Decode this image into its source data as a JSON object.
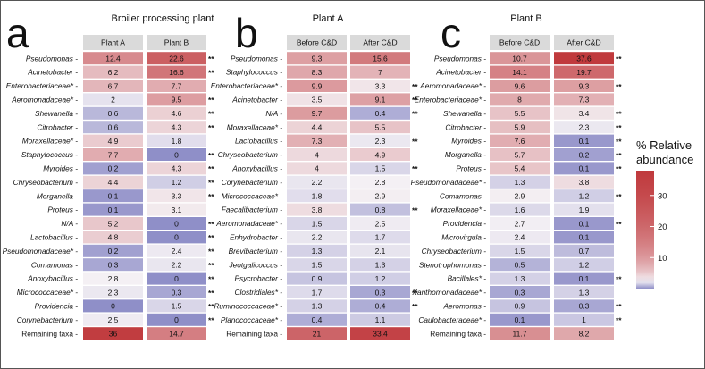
{
  "chart_data": [
    {
      "panel": "a",
      "title": "Broiler processing plant",
      "type": "heatmap",
      "columns": [
        "Plant A",
        "Plant B"
      ],
      "rows": [
        {
          "label": "Pseudomonas",
          "italic": true,
          "values": [
            12.4,
            22.6
          ],
          "sig": "**"
        },
        {
          "label": "Acinetobacter",
          "italic": true,
          "values": [
            6.2,
            16.6
          ],
          "sig": "**"
        },
        {
          "label": "Enterobacteriaceae*",
          "italic": true,
          "values": [
            6.7,
            7.7
          ],
          "sig": ""
        },
        {
          "label": "Aeromonadaceae*",
          "italic": true,
          "values": [
            2,
            9.5
          ],
          "sig": "**"
        },
        {
          "label": "Shewanella",
          "italic": true,
          "values": [
            0.6,
            4.6
          ],
          "sig": "**"
        },
        {
          "label": "Citrobacter",
          "italic": true,
          "values": [
            0.6,
            4.3
          ],
          "sig": "**"
        },
        {
          "label": "Moraxellaceae*",
          "italic": true,
          "values": [
            4.9,
            1.8
          ],
          "sig": ""
        },
        {
          "label": "Staphylococcus",
          "italic": true,
          "values": [
            7.7,
            0
          ],
          "sig": "**"
        },
        {
          "label": "Myroides",
          "italic": true,
          "values": [
            0.2,
            4.3
          ],
          "sig": "**"
        },
        {
          "label": "Chryseobacterium",
          "italic": true,
          "values": [
            4.4,
            1.2
          ],
          "sig": "**"
        },
        {
          "label": "Morganella",
          "italic": true,
          "values": [
            0.1,
            3.3
          ],
          "sig": "**"
        },
        {
          "label": "Proteus",
          "italic": true,
          "values": [
            0.1,
            3.1
          ],
          "sig": ""
        },
        {
          "label": "N/A",
          "italic": true,
          "values": [
            5.2,
            0
          ],
          "sig": "**"
        },
        {
          "label": "Lactobacillus",
          "italic": true,
          "values": [
            4.8,
            0
          ],
          "sig": "**"
        },
        {
          "label": "Pseudomonadaceae*",
          "italic": true,
          "values": [
            0.2,
            2.4
          ],
          "sig": "**"
        },
        {
          "label": "Comamonas",
          "italic": true,
          "values": [
            0.3,
            2.2
          ],
          "sig": "**"
        },
        {
          "label": "Anoxybacillus",
          "italic": true,
          "values": [
            2.8,
            0
          ],
          "sig": "**"
        },
        {
          "label": "Micrococcaceae*",
          "italic": true,
          "values": [
            2.3,
            0.3
          ],
          "sig": "**"
        },
        {
          "label": "Providencia",
          "italic": true,
          "values": [
            0,
            1.5
          ],
          "sig": "**"
        },
        {
          "label": "Corynebacterium",
          "italic": true,
          "values": [
            2.5,
            0
          ],
          "sig": "**"
        },
        {
          "label": "Remaining taxa",
          "italic": false,
          "values": [
            36,
            14.7
          ],
          "sig": ""
        }
      ]
    },
    {
      "panel": "b",
      "title": "Plant A",
      "type": "heatmap",
      "columns": [
        "Before C&D",
        "After C&D"
      ],
      "rows": [
        {
          "label": "Pseudomonas",
          "italic": true,
          "values": [
            9.3,
            15.6
          ],
          "sig": ""
        },
        {
          "label": "Staphylococcus",
          "italic": true,
          "values": [
            8.3,
            7
          ],
          "sig": ""
        },
        {
          "label": "Enterobacteriaceae*",
          "italic": true,
          "values": [
            9.9,
            3.3
          ],
          "sig": "**"
        },
        {
          "label": "Acinetobacter",
          "italic": true,
          "values": [
            3.5,
            9.1
          ],
          "sig": "**"
        },
        {
          "label": "N/A",
          "italic": true,
          "values": [
            9.7,
            0.4
          ],
          "sig": "**"
        },
        {
          "label": "Moraxellaceae*",
          "italic": true,
          "values": [
            4.4,
            5.5
          ],
          "sig": ""
        },
        {
          "label": "Lactobacillus",
          "italic": true,
          "values": [
            7.3,
            2.3
          ],
          "sig": "**"
        },
        {
          "label": "Chryseobacterium",
          "italic": true,
          "values": [
            4,
            4.9
          ],
          "sig": ""
        },
        {
          "label": "Anoxybacillus",
          "italic": true,
          "values": [
            4,
            1.5
          ],
          "sig": "**"
        },
        {
          "label": "Corynebacterium",
          "italic": true,
          "values": [
            2.2,
            2.8
          ],
          "sig": ""
        },
        {
          "label": "Micrococcaceae*",
          "italic": true,
          "values": [
            1.8,
            2.9
          ],
          "sig": ""
        },
        {
          "label": "Faecalibacterium",
          "italic": true,
          "values": [
            3.8,
            0.8
          ],
          "sig": "**"
        },
        {
          "label": "Aeromonadaceae*",
          "italic": true,
          "values": [
            1.5,
            2.5
          ],
          "sig": ""
        },
        {
          "label": "Enhydrobacter",
          "italic": true,
          "values": [
            2.2,
            1.7
          ],
          "sig": ""
        },
        {
          "label": "Brevibacterium",
          "italic": true,
          "values": [
            1.3,
            2.1
          ],
          "sig": ""
        },
        {
          "label": "Jeotgalicoccus",
          "italic": true,
          "values": [
            1.5,
            1.3
          ],
          "sig": ""
        },
        {
          "label": "Psycrobacter",
          "italic": true,
          "values": [
            0.9,
            1.2
          ],
          "sig": ""
        },
        {
          "label": "Clostridiales*",
          "italic": true,
          "values": [
            1.7,
            0.3
          ],
          "sig": "**"
        },
        {
          "label": "Ruminococcaceae*",
          "italic": true,
          "values": [
            1.3,
            0.4
          ],
          "sig": "**"
        },
        {
          "label": "Planococcaceae*",
          "italic": true,
          "values": [
            0.4,
            1.1
          ],
          "sig": ""
        },
        {
          "label": "Remaining taxa",
          "italic": false,
          "values": [
            21,
            33.4
          ],
          "sig": ""
        }
      ]
    },
    {
      "panel": "c",
      "title": "Plant B",
      "type": "heatmap",
      "columns": [
        "Before C&D",
        "After C&D"
      ],
      "rows": [
        {
          "label": "Pseudomonas",
          "italic": true,
          "values": [
            10.7,
            37.6
          ],
          "sig": "**"
        },
        {
          "label": "Acinetobacter",
          "italic": true,
          "values": [
            14.1,
            19.7
          ],
          "sig": ""
        },
        {
          "label": "Aeromonadaceae*",
          "italic": true,
          "values": [
            9.6,
            9.3
          ],
          "sig": "**"
        },
        {
          "label": "Enterobacteriaceae*",
          "italic": true,
          "values": [
            8,
            7.3
          ],
          "sig": ""
        },
        {
          "label": "Shewanella",
          "italic": true,
          "values": [
            5.5,
            3.4
          ],
          "sig": "**"
        },
        {
          "label": "Citrobacter",
          "italic": true,
          "values": [
            5.9,
            2.3
          ],
          "sig": "**"
        },
        {
          "label": "Myroides",
          "italic": true,
          "values": [
            7.6,
            0.1
          ],
          "sig": "**"
        },
        {
          "label": "Morganella",
          "italic": true,
          "values": [
            5.7,
            0.2
          ],
          "sig": "**"
        },
        {
          "label": "Proteus",
          "italic": true,
          "values": [
            5.4,
            0.1
          ],
          "sig": "**"
        },
        {
          "label": "Pseudomonadaceae*",
          "italic": true,
          "values": [
            1.3,
            3.8
          ],
          "sig": ""
        },
        {
          "label": "Comamonas",
          "italic": true,
          "values": [
            2.9,
            1.2
          ],
          "sig": "**"
        },
        {
          "label": "Moraxellaceae*",
          "italic": true,
          "values": [
            1.6,
            1.9
          ],
          "sig": ""
        },
        {
          "label": "Providencia",
          "italic": true,
          "values": [
            2.7,
            0.1
          ],
          "sig": "**"
        },
        {
          "label": "Microvirgula",
          "italic": true,
          "values": [
            2.4,
            0.1
          ],
          "sig": ""
        },
        {
          "label": "Chryseobacterium",
          "italic": true,
          "values": [
            1.5,
            0.7
          ],
          "sig": ""
        },
        {
          "label": "Stenotrophomonas",
          "italic": true,
          "values": [
            0.5,
            1.2
          ],
          "sig": ""
        },
        {
          "label": "Bacillales*",
          "italic": true,
          "values": [
            1.3,
            0.1
          ],
          "sig": "**"
        },
        {
          "label": "Xanthomonadaceae*",
          "italic": true,
          "values": [
            0.3,
            1.3
          ],
          "sig": ""
        },
        {
          "label": "Aeromonas",
          "italic": true,
          "values": [
            0.9,
            0.3
          ],
          "sig": "**"
        },
        {
          "label": "Caulobacteraceae*",
          "italic": true,
          "values": [
            0.1,
            1
          ],
          "sig": "**"
        },
        {
          "label": "Remaining taxa",
          "italic": false,
          "values": [
            11.7,
            8.2
          ],
          "sig": ""
        }
      ]
    }
  ],
  "legend": {
    "title_line1": "% Relative",
    "title_line2": "abundance",
    "ticks": [
      10,
      20,
      30
    ],
    "range": [
      0,
      38
    ],
    "colors": {
      "low": "#8f8fc8",
      "mid": "#f4f0f4",
      "high": "#c0393c"
    }
  },
  "colors": {
    "header_bg": "#dadada"
  }
}
